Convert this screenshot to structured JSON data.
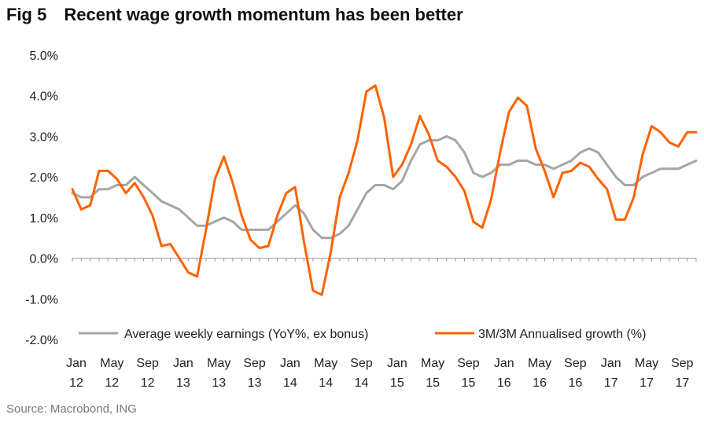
{
  "header": {
    "fig_label": "Fig 5",
    "title": "Recent wage growth momentum has been better"
  },
  "footer": {
    "source": "Source: Macrobond, ING"
  },
  "chart_data": {
    "type": "line",
    "title": "Recent wage growth momentum has been better",
    "ylim": [
      -2.0,
      5.0
    ],
    "yticks": [
      "-2.0%",
      "-1.0%",
      "0.0%",
      "1.0%",
      "2.0%",
      "3.0%",
      "4.0%",
      "5.0%"
    ],
    "ytick_values": [
      -2,
      -1,
      0,
      1,
      2,
      3,
      4,
      5
    ],
    "xticks": [
      {
        "month": "Jan",
        "year": "12",
        "x": 0
      },
      {
        "month": "May",
        "year": "12",
        "x": 4
      },
      {
        "month": "Sep",
        "year": "12",
        "x": 8
      },
      {
        "month": "Jan",
        "year": "13",
        "x": 12
      },
      {
        "month": "May",
        "year": "13",
        "x": 16
      },
      {
        "month": "Sep",
        "year": "13",
        "x": 20
      },
      {
        "month": "Jan",
        "year": "14",
        "x": 24
      },
      {
        "month": "May",
        "year": "14",
        "x": 28
      },
      {
        "month": "Sep",
        "year": "14",
        "x": 32
      },
      {
        "month": "Jan",
        "year": "15",
        "x": 36
      },
      {
        "month": "May",
        "year": "15",
        "x": 40
      },
      {
        "month": "Sep",
        "year": "15",
        "x": 44
      },
      {
        "month": "Jan",
        "year": "16",
        "x": 48
      },
      {
        "month": "May",
        "year": "16",
        "x": 52
      },
      {
        "month": "Sep",
        "year": "16",
        "x": 56
      },
      {
        "month": "Jan",
        "year": "17",
        "x": 60
      },
      {
        "month": "May",
        "year": "17",
        "x": 64
      },
      {
        "month": "Sep",
        "year": "17",
        "x": 68
      }
    ],
    "grid": false,
    "legend_position": "bottom",
    "series": [
      {
        "name": "Average weekly earnings (YoY%, ex bonus)",
        "color": "#a6a6a6",
        "values": [
          1.6,
          1.5,
          1.5,
          1.7,
          1.7,
          1.8,
          1.8,
          2.0,
          1.8,
          1.6,
          1.4,
          1.3,
          1.2,
          1.0,
          0.8,
          0.8,
          0.9,
          1.0,
          0.9,
          0.7,
          0.7,
          0.7,
          0.7,
          0.9,
          1.1,
          1.3,
          1.1,
          0.7,
          0.5,
          0.5,
          0.6,
          0.8,
          1.2,
          1.6,
          1.8,
          1.8,
          1.7,
          1.9,
          2.4,
          2.8,
          2.9,
          2.9,
          3.0,
          2.9,
          2.6,
          2.1,
          2.0,
          2.1,
          2.3,
          2.3,
          2.4,
          2.4,
          2.3,
          2.3,
          2.2,
          2.3,
          2.4,
          2.6,
          2.7,
          2.6,
          2.3,
          2.0,
          1.8,
          1.8,
          2.0,
          2.1,
          2.2,
          2.2,
          2.2,
          2.3,
          2.4
        ]
      },
      {
        "name": "3M/3M Annualised growth (%)",
        "color": "#ff6200",
        "values": [
          1.7,
          1.2,
          1.3,
          2.15,
          2.15,
          1.95,
          1.6,
          1.85,
          1.5,
          1.05,
          0.3,
          0.35,
          0.0,
          -0.35,
          -0.45,
          0.7,
          1.95,
          2.5,
          1.85,
          1.05,
          0.45,
          0.25,
          0.3,
          1.05,
          1.6,
          1.75,
          0.4,
          -0.8,
          -0.9,
          0.15,
          1.5,
          2.1,
          2.9,
          4.1,
          4.25,
          3.45,
          2.0,
          2.3,
          2.8,
          3.5,
          3.05,
          2.4,
          2.25,
          2.0,
          1.65,
          0.9,
          0.75,
          1.45,
          2.6,
          3.6,
          3.95,
          3.75,
          2.7,
          2.15,
          1.5,
          2.1,
          2.15,
          2.35,
          2.25,
          1.95,
          1.7,
          0.95,
          0.95,
          1.5,
          2.55,
          3.25,
          3.1,
          2.85,
          2.75,
          3.1,
          3.1
        ]
      }
    ]
  }
}
